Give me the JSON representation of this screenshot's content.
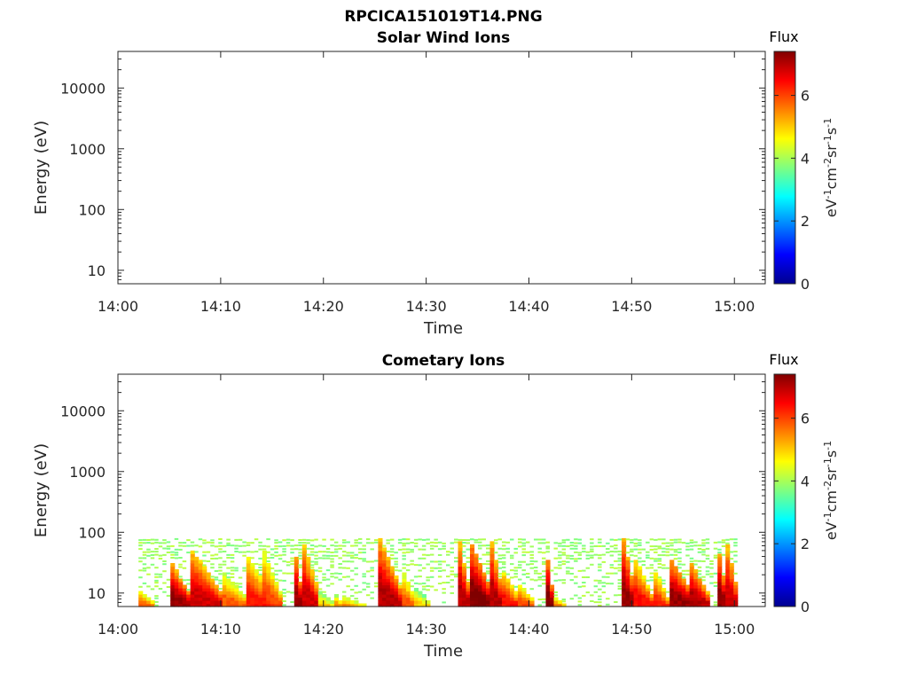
{
  "figure_title": "RPCICA151019T14.PNG",
  "chart_data": [
    {
      "type": "heatmap",
      "title": "Solar Wind Ions",
      "xlabel": "Time",
      "ylabel": "Energy (eV)",
      "x_ticks": [
        "14:00",
        "14:10",
        "14:20",
        "14:30",
        "14:40",
        "14:50",
        "15:00"
      ],
      "x_range_minutes": [
        0,
        63
      ],
      "y_scale": "log",
      "y_ticks": [
        "10",
        "100",
        "1000",
        "10000"
      ],
      "y_range": [
        6,
        40000
      ],
      "colorbar": {
        "label": "Flux",
        "unit": "eV-1cm-2sr-1s-1",
        "ticks": [
          "0",
          "2",
          "4",
          "6"
        ],
        "range": [
          0,
          7.4
        ],
        "colormap": "jet"
      },
      "data": "no data shown"
    },
    {
      "type": "heatmap",
      "title": "Cometary Ions",
      "xlabel": "Time",
      "ylabel": "Energy (eV)",
      "x_ticks": [
        "14:00",
        "14:10",
        "14:20",
        "14:30",
        "14:40",
        "14:50",
        "15:00"
      ],
      "x_range_minutes": [
        0,
        63
      ],
      "y_scale": "log",
      "y_ticks": [
        "10",
        "100",
        "1000",
        "10000"
      ],
      "y_range": [
        6,
        40000
      ],
      "colorbar": {
        "label": "Flux",
        "unit": "eV-1cm-2sr-1s-1",
        "ticks": [
          "0",
          "2",
          "4",
          "6"
        ],
        "range": [
          0,
          7.4
        ],
        "colormap": "jet"
      },
      "energy_extent_eV": [
        6,
        80
      ],
      "data_time_extent_minutes": [
        2,
        60.3
      ],
      "bursts": [
        {
          "start_min": 2.0,
          "end_min": 3.5,
          "top_eV": 12,
          "peak_flux": 5.8
        },
        {
          "start_min": 5.3,
          "end_min": 7.2,
          "top_eV": 30,
          "peak_flux": 7.2
        },
        {
          "start_min": 7.0,
          "end_min": 10.0,
          "top_eV": 60,
          "peak_flux": 6.8
        },
        {
          "start_min": 10.0,
          "end_min": 12.5,
          "top_eV": 25,
          "peak_flux": 5.8
        },
        {
          "start_min": 12.3,
          "end_min": 14.8,
          "top_eV": 50,
          "peak_flux": 6.3
        },
        {
          "start_min": 14.0,
          "end_min": 15.8,
          "top_eV": 60,
          "peak_flux": 6.0
        },
        {
          "start_min": 17.0,
          "end_min": 17.9,
          "top_eV": 80,
          "peak_flux": 7.2
        },
        {
          "start_min": 17.9,
          "end_min": 19.5,
          "top_eV": 80,
          "peak_flux": 6.8
        },
        {
          "start_min": 19.5,
          "end_min": 21.0,
          "top_eV": 12,
          "peak_flux": 5.0
        },
        {
          "start_min": 21.0,
          "end_min": 22.0,
          "top_eV": 10,
          "peak_flux": 5.6
        },
        {
          "start_min": 22.0,
          "end_min": 24.0,
          "top_eV": 9,
          "peak_flux": 5.4
        },
        {
          "start_min": 25.5,
          "end_min": 27.6,
          "top_eV": 80,
          "peak_flux": 7.0
        },
        {
          "start_min": 27.6,
          "end_min": 29.0,
          "top_eV": 25,
          "peak_flux": 5.8
        },
        {
          "start_min": 29.0,
          "end_min": 30.5,
          "top_eV": 12,
          "peak_flux": 5.0
        },
        {
          "start_min": 33.2,
          "end_min": 34.2,
          "top_eV": 80,
          "peak_flux": 7.0
        },
        {
          "start_min": 34.2,
          "end_min": 36.3,
          "top_eV": 80,
          "peak_flux": 7.4
        },
        {
          "start_min": 36.3,
          "end_min": 37.4,
          "top_eV": 80,
          "peak_flux": 7.0
        },
        {
          "start_min": 37.4,
          "end_min": 39.0,
          "top_eV": 25,
          "peak_flux": 6.4
        },
        {
          "start_min": 39.0,
          "end_min": 40.5,
          "top_eV": 15,
          "peak_flux": 6.0
        },
        {
          "start_min": 41.5,
          "end_min": 42.3,
          "top_eV": 80,
          "peak_flux": 7.4
        },
        {
          "start_min": 42.3,
          "end_min": 43.5,
          "top_eV": 10,
          "peak_flux": 5.6
        },
        {
          "start_min": 49.2,
          "end_min": 50.3,
          "top_eV": 80,
          "peak_flux": 7.2
        },
        {
          "start_min": 50.3,
          "end_min": 52.0,
          "top_eV": 40,
          "peak_flux": 6.4
        },
        {
          "start_min": 52.0,
          "end_min": 53.5,
          "top_eV": 30,
          "peak_flux": 6.2
        },
        {
          "start_min": 53.5,
          "end_min": 56.0,
          "top_eV": 45,
          "peak_flux": 7.2
        },
        {
          "start_min": 55.5,
          "end_min": 57.5,
          "top_eV": 40,
          "peak_flux": 7.0
        },
        {
          "start_min": 58.3,
          "end_min": 59.2,
          "top_eV": 80,
          "peak_flux": 7.2
        },
        {
          "start_min": 59.2,
          "end_min": 60.3,
          "top_eV": 80,
          "peak_flux": 6.8
        }
      ]
    }
  ]
}
